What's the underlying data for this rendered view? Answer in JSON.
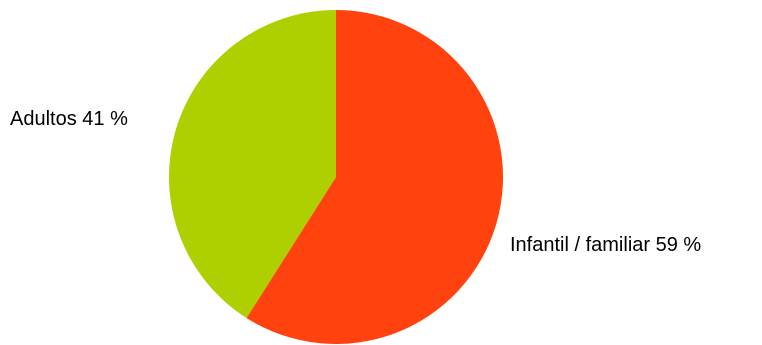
{
  "chart_data": {
    "type": "pie",
    "title": "",
    "slices": [
      {
        "label": "Infantil / familiar 59 %",
        "category": "Infantil / familiar",
        "value": 59,
        "color": "#ff420e"
      },
      {
        "label": "Adultos 41 %",
        "category": "Adultos",
        "value": 41,
        "color": "#aecf00"
      }
    ],
    "start_angle_deg": 0,
    "direction": "clockwise",
    "legend": "none"
  }
}
